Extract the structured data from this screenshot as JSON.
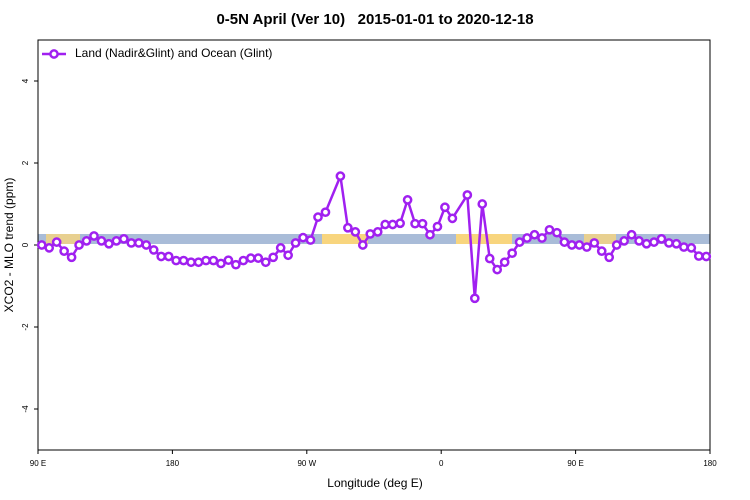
{
  "chart_data": {
    "type": "line",
    "title": "0-5N April (Ver 10)   2015-01-01 to 2020-12-18",
    "xlabel": "Longitude (deg E)",
    "ylabel": "XCO2 - MLO trend (ppm)",
    "xlim": [
      90,
      540
    ],
    "ylim": [
      -5,
      5
    ],
    "xticks": [
      {
        "value": 90,
        "label": "90 E"
      },
      180,
      {
        "value": 270,
        "label": "90 W"
      },
      {
        "value": 360,
        "label": "0"
      },
      {
        "value": 450,
        "label": "90 E"
      },
      {
        "value": 540,
        "label": "180"
      }
    ],
    "yticks": [
      -4,
      -2,
      0,
      2,
      4
    ],
    "legend": "top-left",
    "series": [
      {
        "name": "Land (Nadir&Glint) and Ocean (Glint)",
        "color": "#a020f0",
        "x": [
          92.5,
          97.5,
          102.5,
          107.5,
          112.5,
          117.5,
          122.5,
          127.5,
          132.5,
          137.5,
          142.5,
          147.5,
          152.5,
          157.5,
          162.5,
          167.5,
          172.5,
          177.5,
          182.5,
          187.5,
          192.5,
          197.5,
          202.5,
          207.5,
          212.5,
          217.5,
          222.5,
          227.5,
          232.5,
          237.5,
          242.5,
          247.5,
          252.5,
          257.5,
          262.5,
          267.5,
          272.5,
          277.5,
          282.5,
          292.5,
          297.5,
          302.5,
          307.5,
          312.5,
          317.5,
          322.5,
          327.5,
          332.5,
          337.5,
          342.5,
          347.5,
          352.5,
          357.5,
          362.5,
          367.5,
          377.5,
          382.5,
          387.5,
          392.5,
          397.5,
          402.5,
          407.5,
          412.5,
          417.5,
          422.5,
          427.5,
          432.5,
          437.5,
          442.5,
          447.5,
          452.5,
          457.5,
          462.5,
          467.5,
          472.5,
          477.5,
          482.5,
          487.5,
          492.5,
          497.5,
          502.5,
          507.5,
          512.5,
          517.5,
          522.5,
          527.5,
          532.5,
          537.5
        ],
        "values": [
          0,
          -0.07,
          0.07,
          -0.15,
          -0.3,
          0,
          0.1,
          0.22,
          0.1,
          0.03,
          0.1,
          0.15,
          0.05,
          0.05,
          0,
          -0.12,
          -0.28,
          -0.28,
          -0.38,
          -0.38,
          -0.42,
          -0.42,
          -0.38,
          -0.38,
          -0.45,
          -0.37,
          -0.48,
          -0.38,
          -0.32,
          -0.32,
          -0.42,
          -0.3,
          -0.07,
          -0.25,
          0.05,
          0.18,
          0.12,
          0.68,
          0.8,
          1.68,
          0.42,
          0.32,
          0,
          0.27,
          0.32,
          0.5,
          0.5,
          0.53,
          1.1,
          0.52,
          0.52,
          0.25,
          0.45,
          0.92,
          0.65,
          1.22,
          -1.3,
          1.0,
          -0.33,
          -0.6,
          -0.42,
          -0.2,
          0.07,
          0.17,
          0.25,
          0.17,
          0.37,
          0.3,
          0.07,
          0,
          0,
          -0.05,
          0.05,
          -0.15,
          -0.3,
          0,
          0.1,
          0.25,
          0.1,
          0.03,
          0.07,
          0.15,
          0.05,
          0.03,
          -0.05,
          -0.07,
          -0.27,
          -0.28
        ]
      }
    ]
  }
}
